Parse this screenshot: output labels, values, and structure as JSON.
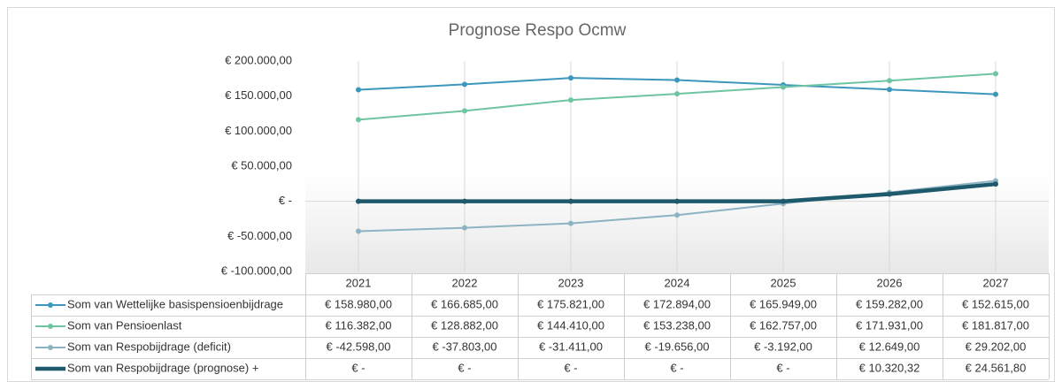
{
  "chart_data": {
    "type": "line",
    "title": "Prognose Respo Ocmw",
    "categories": [
      "2021",
      "2022",
      "2023",
      "2024",
      "2025",
      "2026",
      "2027"
    ],
    "series": [
      {
        "name": "Som van Wettelijke basispensioenbijdrage",
        "color": "#3d97bd",
        "width": 2,
        "values": [
          158980,
          166685,
          175821,
          172894,
          165949,
          159282,
          152615
        ],
        "value_labels": [
          "€ 158.980,00",
          "€ 166.685,00",
          "€ 175.821,00",
          "€ 172.894,00",
          "€ 165.949,00",
          "€ 159.282,00",
          "€ 152.615,00"
        ]
      },
      {
        "name": "Som van Pensioenlast",
        "color": "#6fc4a2",
        "width": 2,
        "values": [
          116382,
          128882,
          144410,
          153238,
          162757,
          171931,
          181817
        ],
        "value_labels": [
          "€ 116.382,00",
          "€ 128.882,00",
          "€ 144.410,00",
          "€ 153.238,00",
          "€ 162.757,00",
          "€ 171.931,00",
          "€ 181.817,00"
        ]
      },
      {
        "name": "Som van Respobijdrage (deficit)",
        "color": "#8db3c2",
        "width": 2,
        "values": [
          -42598,
          -37803,
          -31411,
          -19656,
          -3192,
          12649,
          29202
        ],
        "value_labels": [
          "€ -42.598,00",
          "€ -37.803,00",
          "€ -31.411,00",
          "€ -19.656,00",
          "€ -3.192,00",
          "€ 12.649,00",
          "€ 29.202,00"
        ]
      },
      {
        "name": "Som van Respobijdrage (prognose) +",
        "color": "#1e5a6c",
        "width": 4.5,
        "values": [
          0,
          0,
          0,
          0,
          0,
          10320.32,
          24561.8
        ],
        "value_labels": [
          "€ -",
          "€ -",
          "€ -",
          "€ -",
          "€ -",
          "€ 10.320,32",
          "€ 24.561,80"
        ]
      }
    ],
    "ylim": [
      -100000,
      200000
    ],
    "yticks": [
      {
        "value": -100000,
        "label": "€ -100.000,00"
      },
      {
        "value": -50000,
        "label": "€ -50.000,00"
      },
      {
        "value": 0,
        "label": "€ -"
      },
      {
        "value": 50000,
        "label": "€ 50.000,00"
      },
      {
        "value": 100000,
        "label": "€ 100.000,00"
      },
      {
        "value": 150000,
        "label": "€ 150.000,00"
      },
      {
        "value": 200000,
        "label": "€ 200.000,00"
      }
    ],
    "grid": true
  }
}
